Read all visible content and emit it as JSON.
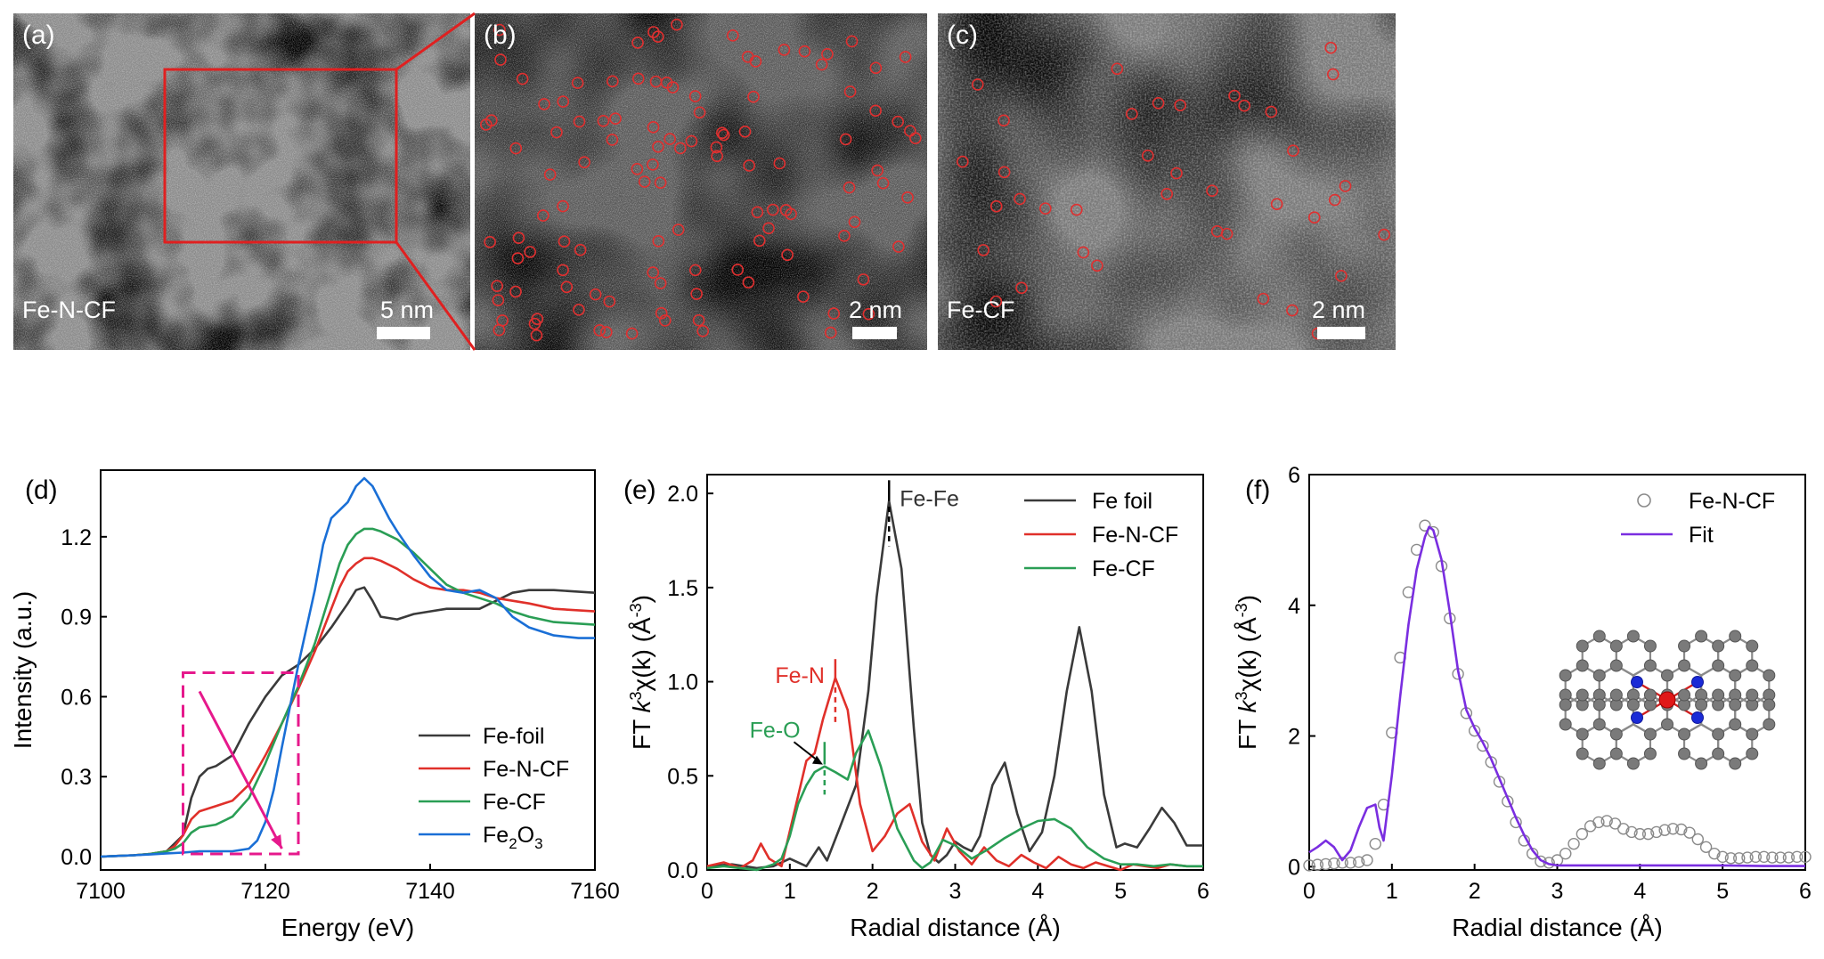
{
  "images": [
    {
      "label": "(a)",
      "sample": "Fe-N-CF",
      "scale": "5 nm"
    },
    {
      "label": "(b)",
      "sample": "",
      "scale": "2 nm"
    },
    {
      "label": "(c)",
      "sample": "Fe-CF",
      "scale": "2 nm"
    }
  ],
  "colors": {
    "selection_box": "#e02020",
    "atom_circle": "#e03030",
    "dashed_box": "#e6198c",
    "arrow": "#e6198c"
  },
  "chart_data": [
    {
      "panel": "(d)",
      "type": "line",
      "xlabel": "Energy (eV)",
      "ylabel": "Intensity (a.u.)",
      "xlim": [
        7100,
        7160
      ],
      "ylim": [
        -0.05,
        1.45
      ],
      "xticks": [
        7100,
        7120,
        7140,
        7160
      ],
      "yticks": [
        0.0,
        0.3,
        0.6,
        0.9,
        1.2
      ],
      "ytick_labels": [
        "0.0",
        "0.3",
        "0.6",
        "0.9",
        "1.2"
      ],
      "legend": "bottom-right",
      "annotation_box": {
        "x": [
          7110,
          7124
        ],
        "y": [
          0.01,
          0.69
        ]
      },
      "annotation_arrow": {
        "from": [
          7112,
          0.62
        ],
        "to": [
          7122,
          0.03
        ]
      },
      "series": [
        {
          "name": "Fe-foil",
          "color": "#3a3a3a",
          "x": [
            7100,
            7104,
            7106,
            7108,
            7110,
            7111,
            7112,
            7113,
            7114,
            7116,
            7117,
            7118,
            7120,
            7122,
            7124,
            7126,
            7128,
            7130,
            7131,
            7132,
            7133,
            7134,
            7136,
            7138,
            7140,
            7142,
            7144,
            7146,
            7148,
            7150,
            7152,
            7155,
            7160
          ],
          "y": [
            0.0,
            0.005,
            0.01,
            0.02,
            0.08,
            0.22,
            0.3,
            0.33,
            0.34,
            0.38,
            0.44,
            0.5,
            0.6,
            0.68,
            0.72,
            0.78,
            0.86,
            0.95,
            1.0,
            1.01,
            0.96,
            0.9,
            0.89,
            0.91,
            0.92,
            0.93,
            0.93,
            0.93,
            0.96,
            0.99,
            1.0,
            1.0,
            0.99
          ]
        },
        {
          "name": "Fe-N-CF",
          "color": "#e0302a",
          "x": [
            7100,
            7104,
            7106,
            7108,
            7109,
            7110,
            7111,
            7112,
            7114,
            7116,
            7118,
            7120,
            7122,
            7124,
            7126,
            7128,
            7129,
            7130,
            7131,
            7132,
            7133,
            7134,
            7136,
            7138,
            7140,
            7142,
            7144,
            7146,
            7148,
            7150,
            7152,
            7155,
            7160
          ],
          "y": [
            0.0,
            0.005,
            0.01,
            0.02,
            0.04,
            0.08,
            0.14,
            0.17,
            0.19,
            0.21,
            0.27,
            0.38,
            0.5,
            0.63,
            0.77,
            0.93,
            1.01,
            1.07,
            1.1,
            1.12,
            1.12,
            1.11,
            1.08,
            1.04,
            1.01,
            1.0,
            1.0,
            0.99,
            0.97,
            0.96,
            0.95,
            0.93,
            0.92
          ]
        },
        {
          "name": "Fe-CF",
          "color": "#2a9e55",
          "x": [
            7100,
            7104,
            7106,
            7108,
            7109,
            7110,
            7111,
            7112,
            7114,
            7116,
            7118,
            7120,
            7122,
            7124,
            7126,
            7128,
            7129,
            7130,
            7131,
            7132,
            7133,
            7134,
            7136,
            7138,
            7140,
            7142,
            7144,
            7146,
            7148,
            7150,
            7152,
            7155,
            7160
          ],
          "y": [
            0.0,
            0.005,
            0.01,
            0.02,
            0.03,
            0.05,
            0.09,
            0.11,
            0.12,
            0.15,
            0.22,
            0.35,
            0.5,
            0.64,
            0.8,
            1.0,
            1.1,
            1.17,
            1.21,
            1.23,
            1.23,
            1.22,
            1.19,
            1.14,
            1.08,
            1.02,
            0.99,
            0.97,
            0.95,
            0.92,
            0.9,
            0.88,
            0.87
          ]
        },
        {
          "name": "Fe2O3",
          "color": "#1a6fd6",
          "x": [
            7100,
            7104,
            7106,
            7108,
            7110,
            7112,
            7114,
            7116,
            7118,
            7119,
            7120,
            7121,
            7122,
            7124,
            7126,
            7127,
            7128,
            7129,
            7130,
            7131,
            7132,
            7133,
            7134,
            7135,
            7136,
            7138,
            7140,
            7142,
            7144,
            7146,
            7148,
            7150,
            7152,
            7155,
            7158,
            7160
          ],
          "y": [
            0.0,
            0.005,
            0.008,
            0.012,
            0.015,
            0.02,
            0.02,
            0.02,
            0.03,
            0.06,
            0.13,
            0.25,
            0.41,
            0.72,
            1.0,
            1.17,
            1.27,
            1.3,
            1.33,
            1.39,
            1.42,
            1.39,
            1.33,
            1.27,
            1.22,
            1.13,
            1.05,
            1.0,
            0.99,
            1.0,
            0.97,
            0.9,
            0.86,
            0.83,
            0.82,
            0.82
          ]
        }
      ],
      "legend_entries": [
        {
          "label": "Fe-foil",
          "color": "#3a3a3a"
        },
        {
          "label": "Fe-N-CF",
          "color": "#e0302a"
        },
        {
          "label": "Fe-CF",
          "color": "#2a9e55"
        },
        {
          "label": "Fe",
          "sub": "2",
          "label2": "O",
          "sub2": "3",
          "color": "#1a6fd6"
        }
      ]
    },
    {
      "panel": "(e)",
      "type": "line",
      "xlabel": "Radial distance (Å)",
      "ylabel_parts": [
        "FT ",
        "k",
        "3",
        "χ(k) (Å",
        "-3",
        ")"
      ],
      "xlim": [
        0,
        6
      ],
      "ylim": [
        0,
        2.1
      ],
      "xticks": [
        0,
        1,
        2,
        3,
        4,
        5,
        6
      ],
      "yticks": [
        0.0,
        0.5,
        1.0,
        1.5,
        2.0
      ],
      "ytick_labels": [
        "0.0",
        "0.5",
        "1.0",
        "1.5",
        "2.0"
      ],
      "legend": "top-right",
      "annotations": [
        {
          "text": "Fe-Fe",
          "x": 2.2,
          "y": 1.97,
          "color": "#333333"
        },
        {
          "text": "Fe-N",
          "x": 1.55,
          "y": 1.03,
          "color": "#e0302a"
        },
        {
          "text": "Fe-O",
          "x": 1.42,
          "y": 0.67,
          "color": "#2a9e55"
        }
      ],
      "series": [
        {
          "name": "Fe foil",
          "color": "#3a3a3a",
          "x": [
            0,
            0.3,
            0.6,
            0.8,
            1.0,
            1.2,
            1.35,
            1.45,
            1.6,
            1.8,
            1.95,
            2.05,
            2.2,
            2.35,
            2.5,
            2.6,
            2.7,
            2.8,
            2.9,
            3.0,
            3.1,
            3.2,
            3.3,
            3.45,
            3.6,
            3.75,
            3.9,
            4.05,
            4.2,
            4.35,
            4.5,
            4.65,
            4.8,
            4.95,
            5.05,
            5.2,
            5.35,
            5.5,
            5.65,
            5.8,
            6.0
          ],
          "y": [
            0.02,
            0.03,
            0.01,
            0.02,
            0.06,
            0.02,
            0.12,
            0.05,
            0.22,
            0.45,
            0.95,
            1.45,
            1.96,
            1.6,
            0.75,
            0.25,
            0.08,
            0.04,
            0.08,
            0.15,
            0.12,
            0.1,
            0.18,
            0.45,
            0.57,
            0.3,
            0.1,
            0.2,
            0.5,
            0.95,
            1.29,
            0.95,
            0.4,
            0.12,
            0.14,
            0.12,
            0.22,
            0.33,
            0.25,
            0.13,
            0.13
          ]
        },
        {
          "name": "Fe-N-CF",
          "color": "#e0302a",
          "x": [
            0,
            0.2,
            0.4,
            0.55,
            0.65,
            0.75,
            0.9,
            1.05,
            1.2,
            1.3,
            1.4,
            1.55,
            1.7,
            1.85,
            2.0,
            2.15,
            2.3,
            2.45,
            2.6,
            2.75,
            2.9,
            3.05,
            3.2,
            3.35,
            3.5,
            3.65,
            3.8,
            3.95,
            4.1,
            4.25,
            4.4,
            4.55,
            4.7,
            4.85,
            5.0,
            5.15,
            5.3,
            5.45,
            5.6,
            5.8,
            6.0
          ],
          "y": [
            0.02,
            0.04,
            0.01,
            0.05,
            0.14,
            0.06,
            0.02,
            0.3,
            0.58,
            0.62,
            0.8,
            1.02,
            0.85,
            0.35,
            0.1,
            0.18,
            0.3,
            0.35,
            0.15,
            0.05,
            0.22,
            0.1,
            0.03,
            0.12,
            0.05,
            0.02,
            0.08,
            0.04,
            0.01,
            0.07,
            0.03,
            0.01,
            0.04,
            0.02,
            0.0,
            0.03,
            0.02,
            0.01,
            0.03,
            0.02,
            0.02
          ]
        },
        {
          "name": "Fe-CF",
          "color": "#2a9e55",
          "x": [
            0,
            0.2,
            0.4,
            0.6,
            0.8,
            0.9,
            1.0,
            1.1,
            1.2,
            1.3,
            1.42,
            1.55,
            1.7,
            1.8,
            1.95,
            2.1,
            2.3,
            2.5,
            2.6,
            2.7,
            2.85,
            3.0,
            3.2,
            3.4,
            3.6,
            3.8,
            4.0,
            4.2,
            4.4,
            4.6,
            4.8,
            5.0,
            5.2,
            5.4,
            5.6,
            5.8,
            6.0
          ],
          "y": [
            0.01,
            0.02,
            0.01,
            0.0,
            0.03,
            0.06,
            0.18,
            0.35,
            0.45,
            0.52,
            0.55,
            0.52,
            0.48,
            0.62,
            0.74,
            0.55,
            0.22,
            0.05,
            0.01,
            0.04,
            0.16,
            0.13,
            0.06,
            0.11,
            0.17,
            0.22,
            0.26,
            0.27,
            0.22,
            0.12,
            0.06,
            0.03,
            0.03,
            0.02,
            0.03,
            0.02,
            0.02
          ]
        }
      ]
    },
    {
      "panel": "(f)",
      "type": "scatter",
      "xlabel": "Radial distance (Å)",
      "ylabel_parts": [
        "FT ",
        "k",
        "3",
        "χ(k) (Å",
        "-3",
        ")"
      ],
      "xlim": [
        0,
        6
      ],
      "ylim": [
        -0.05,
        6
      ],
      "xticks": [
        0,
        1,
        2,
        3,
        4,
        5,
        6
      ],
      "yticks": [
        0,
        2,
        4,
        6
      ],
      "ytick_labels": [
        "0",
        "2",
        "4",
        "6"
      ],
      "legend": "top-right",
      "series": [
        {
          "name": "Fe-N-CF",
          "color": "#8a8a8a",
          "marker": "open-circle",
          "x": [
            0,
            0.1,
            0.2,
            0.3,
            0.4,
            0.5,
            0.6,
            0.7,
            0.8,
            0.9,
            1.0,
            1.1,
            1.2,
            1.3,
            1.4,
            1.5,
            1.6,
            1.7,
            1.8,
            1.9,
            2.0,
            2.1,
            2.2,
            2.3,
            2.4,
            2.5,
            2.6,
            2.7,
            2.8,
            2.9,
            3.0,
            3.1,
            3.2,
            3.3,
            3.4,
            3.5,
            3.6,
            3.7,
            3.8,
            3.9,
            4.0,
            4.1,
            4.2,
            4.3,
            4.4,
            4.5,
            4.6,
            4.7,
            4.8,
            4.9,
            5.0,
            5.1,
            5.2,
            5.3,
            5.4,
            5.5,
            5.6,
            5.7,
            5.8,
            5.9,
            6.0
          ],
          "y": [
            0.02,
            0.03,
            0.04,
            0.05,
            0.06,
            0.06,
            0.07,
            0.1,
            0.35,
            0.95,
            2.05,
            3.2,
            4.2,
            4.85,
            5.22,
            5.12,
            4.6,
            3.8,
            2.95,
            2.35,
            2.08,
            1.85,
            1.6,
            1.3,
            1.0,
            0.68,
            0.4,
            0.2,
            0.08,
            0.06,
            0.1,
            0.2,
            0.35,
            0.5,
            0.62,
            0.68,
            0.7,
            0.66,
            0.58,
            0.53,
            0.5,
            0.5,
            0.53,
            0.56,
            0.58,
            0.57,
            0.52,
            0.42,
            0.3,
            0.2,
            0.15,
            0.13,
            0.13,
            0.14,
            0.15,
            0.15,
            0.14,
            0.14,
            0.14,
            0.15,
            0.15
          ]
        },
        {
          "name": "Fit",
          "color": "#7a2ee0",
          "marker": "line",
          "x": [
            0,
            0.1,
            0.2,
            0.3,
            0.4,
            0.5,
            0.6,
            0.7,
            0.8,
            0.85,
            0.9,
            1.0,
            1.1,
            1.2,
            1.3,
            1.4,
            1.45,
            1.5,
            1.6,
            1.7,
            1.8,
            1.9,
            2.0,
            2.1,
            2.2,
            2.3,
            2.4,
            2.5,
            2.6,
            2.7,
            2.8,
            2.9,
            3.0,
            3.2,
            3.5,
            4.0,
            4.5,
            5.0,
            5.5,
            6.0
          ],
          "y": [
            0.22,
            0.3,
            0.4,
            0.3,
            0.1,
            0.25,
            0.6,
            0.9,
            0.95,
            0.6,
            0.4,
            1.4,
            2.6,
            3.7,
            4.55,
            5.05,
            5.2,
            5.15,
            4.7,
            3.9,
            3.0,
            2.4,
            2.12,
            1.9,
            1.65,
            1.35,
            1.05,
            0.75,
            0.48,
            0.25,
            0.1,
            0.04,
            0.02,
            0.02,
            0.02,
            0.02,
            0.02,
            0.02,
            0.01,
            0.01
          ]
        }
      ]
    }
  ]
}
